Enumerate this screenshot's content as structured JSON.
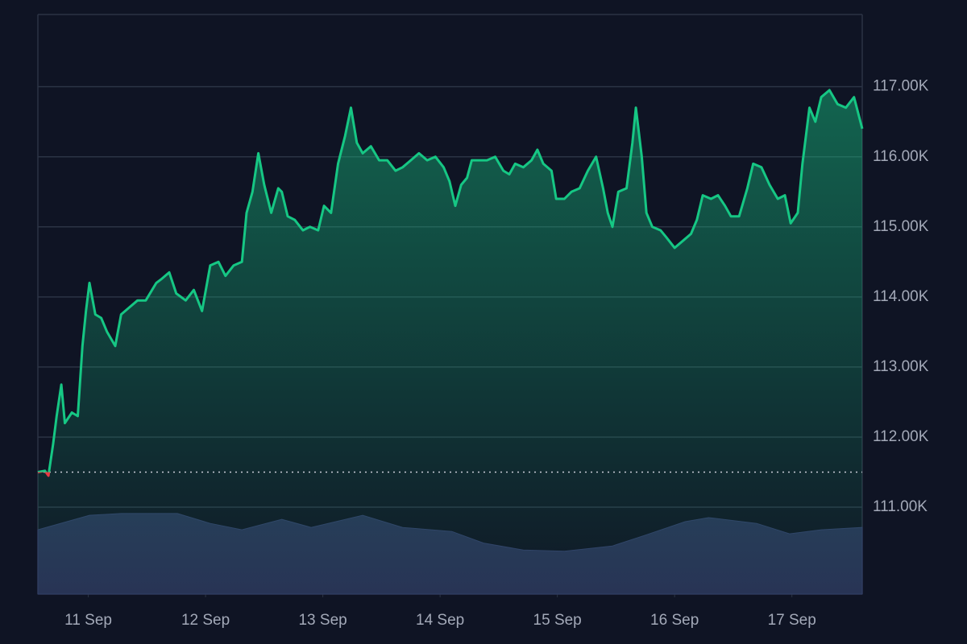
{
  "chart_data": {
    "type": "line",
    "xlim": [
      -0.43,
      6.6
    ],
    "xticks": [
      {
        "value": 0,
        "label": "11 Sep"
      },
      {
        "value": 1,
        "label": "12 Sep"
      },
      {
        "value": 2,
        "label": "13 Sep"
      },
      {
        "value": 3,
        "label": "14 Sep"
      },
      {
        "value": 4,
        "label": "15 Sep"
      },
      {
        "value": 5,
        "label": "16 Sep"
      },
      {
        "value": 6,
        "label": "17 Sep"
      }
    ],
    "ylim": [
      109760,
      118030
    ],
    "yticks": [
      {
        "value": 111000,
        "label": "111.00K"
      },
      {
        "value": 112000,
        "label": "112.00K"
      },
      {
        "value": 113000,
        "label": "113.00K"
      },
      {
        "value": 114000,
        "label": "114.00K"
      },
      {
        "value": 115000,
        "label": "115.00K"
      },
      {
        "value": 116000,
        "label": "116.00K"
      },
      {
        "value": 117000,
        "label": "117.00K"
      }
    ],
    "y2lim": [
      0,
      100
    ],
    "grid": true,
    "baseline": 111500,
    "up_color": "#16c784",
    "down_color": "#ea3943",
    "series": [
      {
        "color": "#16c784",
        "x": [
          -0.43,
          -0.37,
          -0.34,
          -0.3,
          -0.27,
          -0.23,
          -0.2,
          -0.14,
          -0.09,
          -0.05,
          -0.02,
          0.01,
          0.06,
          0.11,
          0.16,
          0.23,
          0.28,
          0.35,
          0.42,
          0.49,
          0.58,
          0.62,
          0.69,
          0.75,
          0.83,
          0.9,
          0.97,
          1.04,
          1.11,
          1.17,
          1.24,
          1.31,
          1.35,
          1.4,
          1.45,
          1.5,
          1.56,
          1.62,
          1.65,
          1.7,
          1.76,
          1.83,
          1.89,
          1.96,
          2.01,
          2.07,
          2.13,
          2.19,
          2.24,
          2.29,
          2.34,
          2.41,
          2.48,
          2.55,
          2.62,
          2.68,
          2.75,
          2.82,
          2.89,
          2.96,
          3.03,
          3.08,
          3.13,
          3.18,
          3.23,
          3.27,
          3.34,
          3.4,
          3.47,
          3.54,
          3.59,
          3.64,
          3.71,
          3.78,
          3.83,
          3.88,
          3.95,
          3.99,
          4.06,
          4.12,
          4.19,
          4.26,
          4.33,
          4.39,
          4.43,
          4.47,
          4.52,
          4.59,
          4.64,
          4.67,
          4.72,
          4.76,
          4.81,
          4.88,
          4.93,
          5.0,
          5.07,
          5.14,
          5.19,
          5.24,
          5.31,
          5.37,
          5.43,
          5.48,
          5.55,
          5.62,
          5.67,
          5.74,
          5.81,
          5.88,
          5.94,
          5.99,
          6.05,
          6.09,
          6.15,
          6.2,
          6.25,
          6.32,
          6.39,
          6.46,
          6.53,
          6.6
        ],
        "values": [
          111500,
          111520,
          111450,
          111900,
          112300,
          112750,
          112200,
          112350,
          112300,
          113300,
          113800,
          114200,
          113750,
          113700,
          113500,
          113300,
          113750,
          113850,
          113950,
          113950,
          114200,
          114250,
          114350,
          114050,
          113950,
          114100,
          113800,
          114450,
          114500,
          114300,
          114450,
          114500,
          115200,
          115500,
          116050,
          115600,
          115200,
          115550,
          115500,
          115150,
          115100,
          114950,
          115000,
          114950,
          115300,
          115200,
          115900,
          116300,
          116700,
          116200,
          116050,
          116150,
          115950,
          115950,
          115800,
          115850,
          115950,
          116050,
          115950,
          116000,
          115850,
          115650,
          115300,
          115600,
          115700,
          115950,
          115950,
          115950,
          116000,
          115800,
          115750,
          115900,
          115850,
          115950,
          116100,
          115900,
          115800,
          115400,
          115400,
          115500,
          115550,
          115800,
          116000,
          115550,
          115200,
          115000,
          115500,
          115550,
          116200,
          116700,
          116000,
          115200,
          115000,
          114950,
          114850,
          114700,
          114800,
          114900,
          115100,
          115450,
          115400,
          115450,
          115300,
          115150,
          115150,
          115550,
          115900,
          115850,
          115600,
          115400,
          115450,
          115050,
          115200,
          115900,
          116700,
          116500,
          116850,
          116950,
          116750,
          116700,
          116850,
          116400
        ]
      },
      {
        "color": "#283154",
        "axis": "y2",
        "x": [
          -0.43,
          0.01,
          0.28,
          0.76,
          1.04,
          1.31,
          1.65,
          1.9,
          2.34,
          2.68,
          3.1,
          3.37,
          3.71,
          4.06,
          4.47,
          4.74,
          5.09,
          5.29,
          5.7,
          5.98,
          6.25,
          6.6
        ],
        "values": [
          11.1,
          13.6,
          13.9,
          13.9,
          12.2,
          11.1,
          12.9,
          11.5,
          13.6,
          11.5,
          10.8,
          8.8,
          7.6,
          7.4,
          8.3,
          10.1,
          12.5,
          13.2,
          12.2,
          10.4,
          11.1,
          11.5
        ]
      }
    ]
  }
}
